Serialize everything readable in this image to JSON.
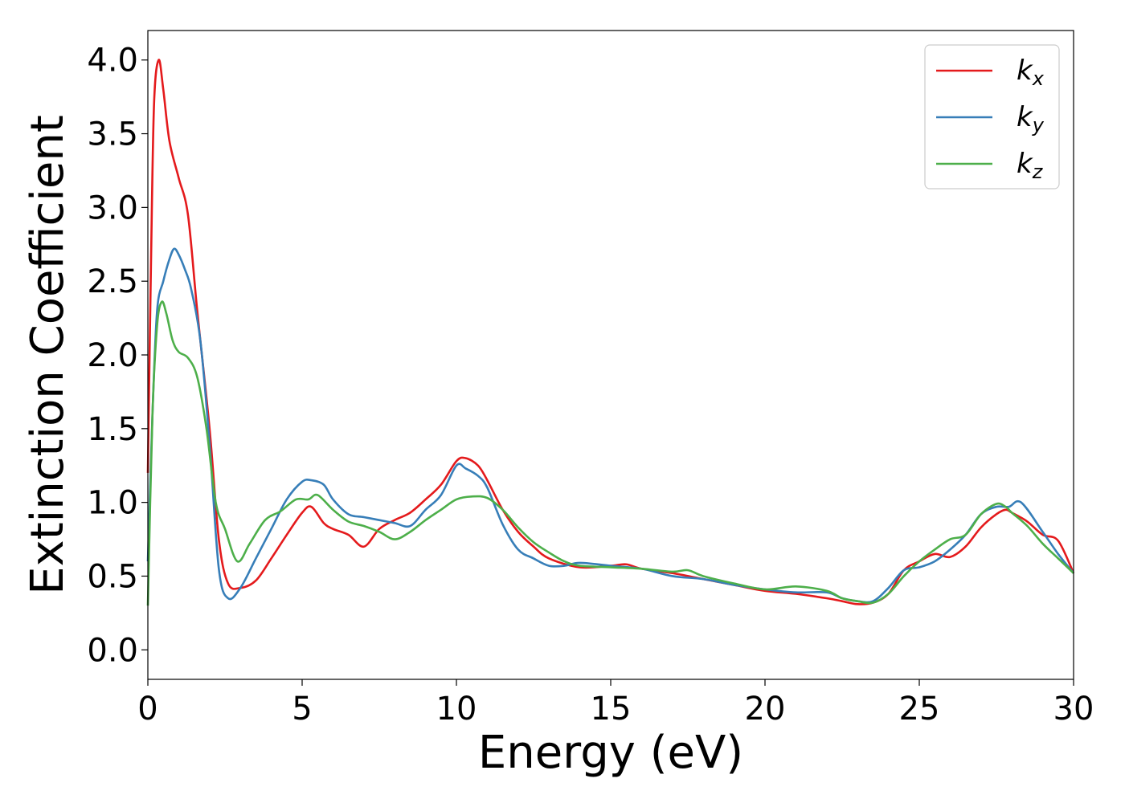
{
  "chart_data": {
    "type": "line",
    "xlabel": "Energy (eV)",
    "ylabel": "Extinction Coefficient",
    "xlim": [
      0,
      30
    ],
    "ylim": [
      -0.2,
      4.2
    ],
    "xticks": [
      "0",
      "5",
      "10",
      "15",
      "20",
      "25",
      "30"
    ],
    "yticks": [
      "0.0",
      "0.5",
      "1.0",
      "1.5",
      "2.0",
      "2.5",
      "3.0",
      "3.5",
      "4.0"
    ],
    "grid": false,
    "legend_position": "top-right",
    "series": [
      {
        "name": "k",
        "subscript": "x",
        "color": "#e41a1c",
        "x": [
          0,
          0.1,
          0.2,
          0.35,
          0.5,
          0.7,
          1.0,
          1.3,
          1.6,
          2.0,
          2.3,
          2.6,
          3.0,
          3.5,
          4.0,
          4.5,
          5.0,
          5.3,
          5.7,
          6.0,
          6.5,
          7.0,
          7.5,
          8.0,
          8.5,
          9.0,
          9.5,
          10.0,
          10.3,
          10.7,
          11.0,
          11.5,
          12.0,
          12.5,
          13.0,
          14.0,
          15.0,
          15.5,
          16.0,
          17.0,
          18.0,
          19.0,
          20.0,
          21.0,
          22.0,
          22.5,
          23.0,
          23.5,
          24.0,
          24.5,
          25.0,
          25.5,
          26.0,
          26.5,
          27.0,
          27.5,
          27.8,
          28.0,
          28.5,
          29.0,
          29.5,
          30.0
        ],
        "y": [
          1.2,
          2.6,
          3.7,
          4.0,
          3.8,
          3.45,
          3.2,
          2.95,
          2.3,
          1.5,
          0.75,
          0.45,
          0.42,
          0.47,
          0.62,
          0.78,
          0.93,
          0.97,
          0.86,
          0.82,
          0.78,
          0.7,
          0.82,
          0.88,
          0.93,
          1.02,
          1.12,
          1.28,
          1.3,
          1.25,
          1.15,
          0.95,
          0.8,
          0.7,
          0.62,
          0.56,
          0.57,
          0.58,
          0.55,
          0.52,
          0.48,
          0.44,
          0.4,
          0.38,
          0.35,
          0.33,
          0.31,
          0.32,
          0.38,
          0.54,
          0.6,
          0.65,
          0.63,
          0.7,
          0.83,
          0.92,
          0.95,
          0.93,
          0.87,
          0.78,
          0.74,
          0.52
        ]
      },
      {
        "name": "k",
        "subscript": "y",
        "color": "#377eb8",
        "x": [
          0,
          0.15,
          0.3,
          0.5,
          0.7,
          0.85,
          1.0,
          1.2,
          1.4,
          1.7,
          2.0,
          2.3,
          2.6,
          3.0,
          3.5,
          4.0,
          4.5,
          5.0,
          5.3,
          5.7,
          6.0,
          6.5,
          7.0,
          7.5,
          8.0,
          8.5,
          9.0,
          9.5,
          10.0,
          10.3,
          10.7,
          11.0,
          11.5,
          12.0,
          12.5,
          13.0,
          13.5,
          14.0,
          15.0,
          16.0,
          17.0,
          18.0,
          19.0,
          20.0,
          21.0,
          22.0,
          22.5,
          23.0,
          23.5,
          24.0,
          24.5,
          25.0,
          25.5,
          26.0,
          26.5,
          27.0,
          27.5,
          27.9,
          28.3,
          29.0,
          29.5,
          30.0
        ],
        "y": [
          0.6,
          1.6,
          2.3,
          2.5,
          2.65,
          2.72,
          2.68,
          2.58,
          2.45,
          2.1,
          1.4,
          0.55,
          0.35,
          0.42,
          0.62,
          0.82,
          1.02,
          1.14,
          1.15,
          1.12,
          1.02,
          0.92,
          0.9,
          0.88,
          0.86,
          0.84,
          0.95,
          1.05,
          1.25,
          1.23,
          1.18,
          1.1,
          0.85,
          0.68,
          0.62,
          0.57,
          0.57,
          0.59,
          0.57,
          0.55,
          0.5,
          0.48,
          0.44,
          0.41,
          0.39,
          0.39,
          0.35,
          0.33,
          0.33,
          0.42,
          0.54,
          0.56,
          0.6,
          0.68,
          0.78,
          0.92,
          0.97,
          0.97,
          1.0,
          0.8,
          0.65,
          0.52
        ]
      },
      {
        "name": "k",
        "subscript": "z",
        "color": "#4daf4a",
        "x": [
          0,
          0.15,
          0.3,
          0.45,
          0.6,
          0.8,
          1.0,
          1.3,
          1.6,
          1.9,
          2.2,
          2.5,
          2.9,
          3.3,
          3.8,
          4.3,
          4.8,
          5.2,
          5.5,
          6.0,
          6.5,
          7.0,
          7.5,
          8.0,
          8.5,
          9.0,
          9.5,
          10.0,
          10.5,
          11.0,
          11.5,
          12.0,
          12.5,
          13.0,
          13.5,
          14.0,
          15.0,
          16.0,
          17.0,
          17.5,
          18.0,
          19.0,
          20.0,
          21.0,
          22.0,
          22.5,
          23.0,
          23.5,
          24.0,
          24.5,
          25.0,
          25.5,
          26.0,
          26.5,
          27.0,
          27.5,
          27.8,
          28.0,
          28.5,
          29.0,
          29.5,
          30.0
        ],
        "y": [
          0.3,
          1.6,
          2.2,
          2.36,
          2.28,
          2.1,
          2.02,
          1.98,
          1.85,
          1.5,
          1.0,
          0.82,
          0.6,
          0.72,
          0.88,
          0.94,
          1.02,
          1.02,
          1.05,
          0.95,
          0.87,
          0.84,
          0.8,
          0.75,
          0.8,
          0.88,
          0.95,
          1.02,
          1.04,
          1.03,
          0.95,
          0.83,
          0.73,
          0.66,
          0.6,
          0.57,
          0.56,
          0.55,
          0.53,
          0.54,
          0.5,
          0.45,
          0.41,
          0.43,
          0.4,
          0.35,
          0.33,
          0.32,
          0.38,
          0.5,
          0.6,
          0.68,
          0.75,
          0.78,
          0.92,
          0.99,
          0.97,
          0.93,
          0.84,
          0.72,
          0.62,
          0.52
        ]
      }
    ]
  }
}
